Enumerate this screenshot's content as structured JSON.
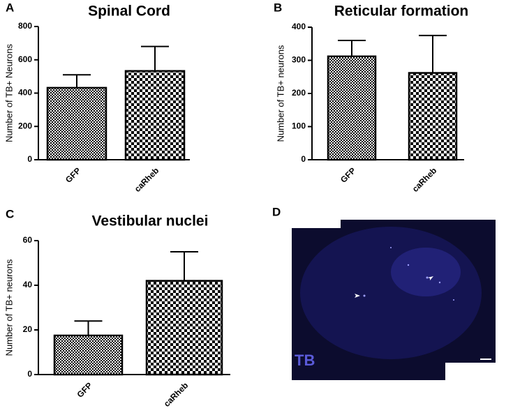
{
  "chart_data": [
    {
      "type": "bar",
      "panel_label": "A",
      "title": "Spinal Cord",
      "y_label": "Number of TB+ Neurons",
      "categories": [
        "GFP",
        "caRheb"
      ],
      "values": [
        432,
        533
      ],
      "errors": [
        78,
        147
      ],
      "ylim": [
        0,
        800
      ],
      "yticks": [
        0,
        200,
        400,
        600,
        800
      ]
    },
    {
      "type": "bar",
      "panel_label": "B",
      "title": "Reticular formation",
      "y_label": "Number of TB+ neurons",
      "categories": [
        "GFP",
        "caRheb"
      ],
      "values": [
        312,
        262
      ],
      "errors": [
        48,
        113
      ],
      "ylim": [
        0,
        400
      ],
      "yticks": [
        0,
        100,
        200,
        300,
        400
      ]
    },
    {
      "type": "bar",
      "panel_label": "C",
      "title": "Vestibular nuclei",
      "y_label": "Number of TB+ neurons",
      "categories": [
        "GFP",
        "caRheb"
      ],
      "values": [
        17.5,
        42
      ],
      "errors": [
        6.5,
        13
      ],
      "ylim": [
        0,
        60
      ],
      "yticks": [
        0,
        20,
        40,
        60
      ]
    }
  ],
  "image_panel": {
    "panel_label": "D",
    "label": "TB"
  }
}
